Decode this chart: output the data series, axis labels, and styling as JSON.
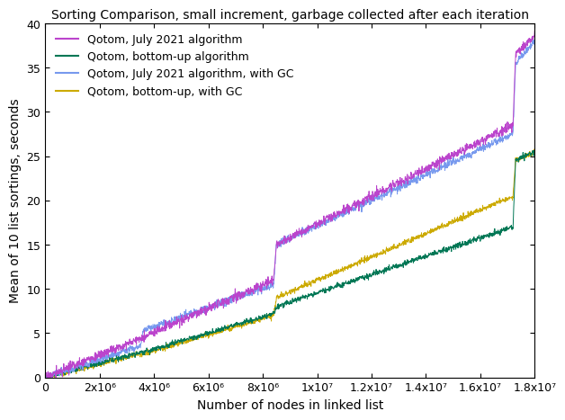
{
  "title": "Sorting Comparison, small increment, garbage collected after each iteration",
  "xlabel": "Number of nodes in linked list",
  "ylabel": "Mean of 10 list sortings, seconds",
  "xlim": [
    0,
    18000000.0
  ],
  "ylim": [
    0,
    40
  ],
  "xticks": [
    0,
    2000000.0,
    4000000.0,
    6000000.0,
    8000000.0,
    10000000.0,
    12000000.0,
    14000000.0,
    16000000.0,
    18000000.0
  ],
  "xtick_labels": [
    "0",
    "2x10⁶",
    "4x10⁶",
    "6x10⁶",
    "8x10⁶",
    "1x10⁷",
    "1.2x10⁷",
    "1.4x10⁷",
    "1.6x10⁷",
    "1.8x10⁷"
  ],
  "yticks": [
    0,
    5,
    10,
    15,
    20,
    25,
    30,
    35,
    40
  ],
  "series": [
    {
      "label": "Qotom, July 2021 algorithm",
      "color": "#bb44cc",
      "linewidth": 0.7
    },
    {
      "label": "Qotom, bottom-up algorithm",
      "color": "#007755",
      "linewidth": 0.7
    },
    {
      "label": "Qotom, July 2021 algorithm, with GC",
      "color": "#7799ee",
      "linewidth": 0.7
    },
    {
      "label": "Qotom, bottom-up, with GC",
      "color": "#ccaa00",
      "linewidth": 0.7
    }
  ],
  "legend_loc": "upper left",
  "background_color": "#ffffff",
  "title_fontsize": 10,
  "axis_fontsize": 10,
  "tick_fontsize": 9,
  "legend_fontsize": 9
}
